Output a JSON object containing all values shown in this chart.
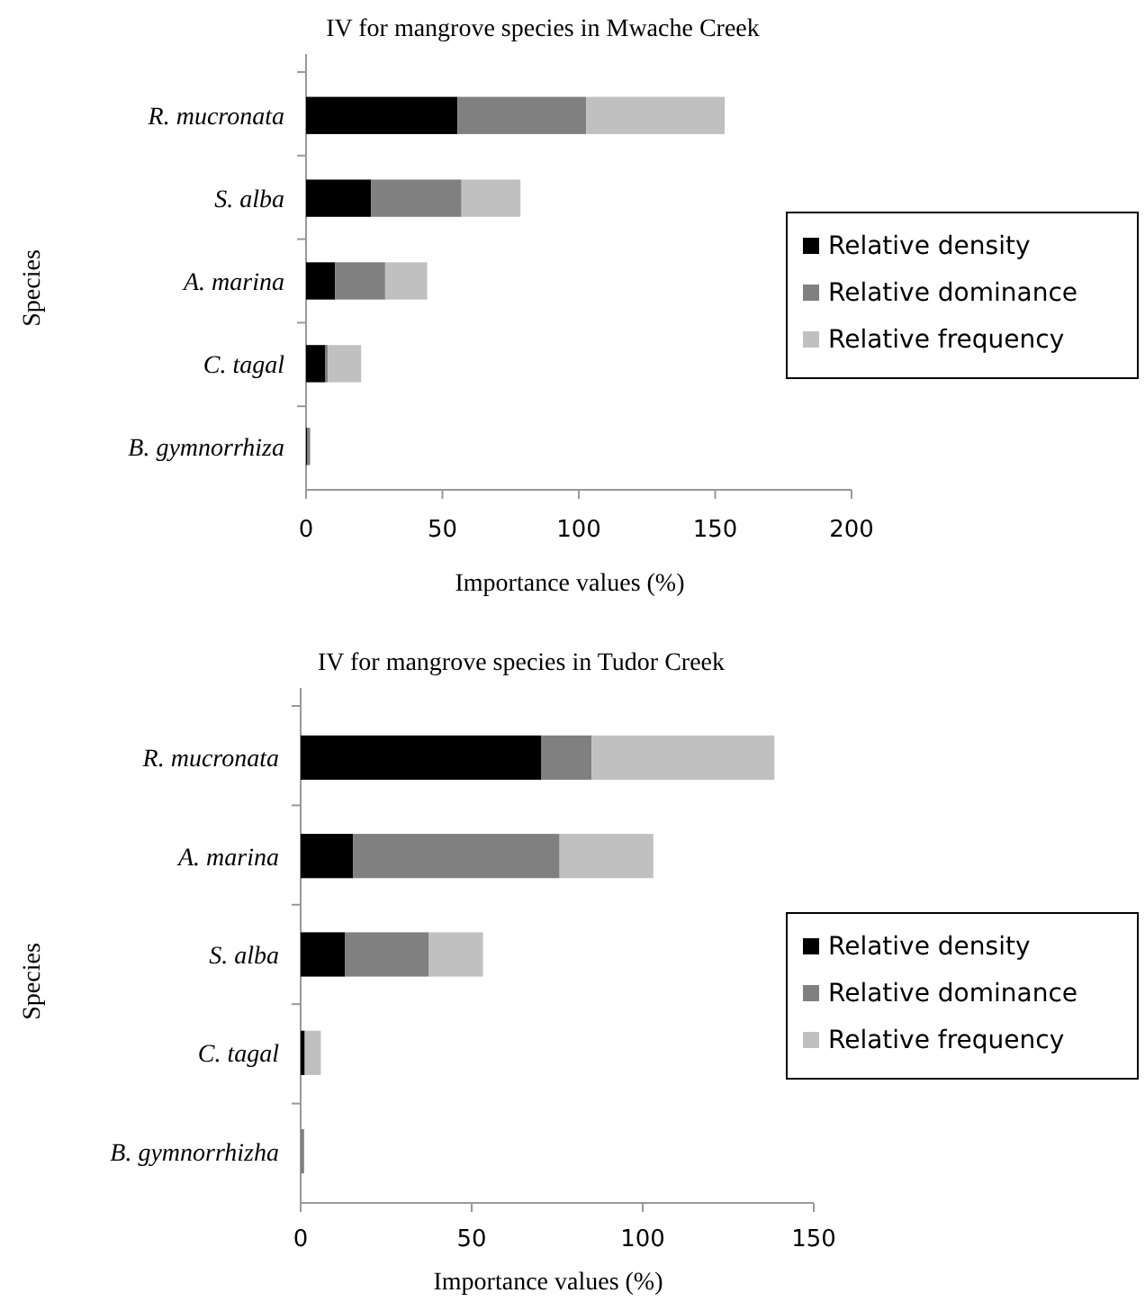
{
  "chart_data": [
    {
      "type": "bar",
      "orientation": "horizontal",
      "stacked": true,
      "title": "IV for mangrove species in Mwache Creek",
      "xlabel": "Importance values (%)",
      "ylabel": "Species",
      "categories": [
        "R. mucronata",
        "S. alba",
        "A. marina",
        "C. tagal",
        "B. gymnorrhiza"
      ],
      "series": [
        {
          "name": "Relative density",
          "color": "#000000",
          "values": [
            55.5,
            23.8,
            10.7,
            7.1,
            0.5
          ]
        },
        {
          "name": "Relative dominance",
          "color": "#808080",
          "values": [
            47.2,
            33.2,
            18.3,
            0.9,
            1
          ]
        },
        {
          "name": "Relative frequency",
          "color": "#c0c0c0",
          "values": [
            50.8,
            21.6,
            15.4,
            12.2,
            null
          ]
        }
      ],
      "xlim": [
        0,
        200
      ],
      "xticks": [
        0,
        50,
        100,
        150,
        200
      ],
      "legend": "right"
    },
    {
      "type": "bar",
      "orientation": "horizontal",
      "stacked": true,
      "title": "IV for mangrove species in Tudor Creek",
      "xlabel": "Importance values (%)",
      "ylabel": "Species",
      "categories": [
        "R. mucronata",
        "A. marina",
        "S. alba",
        "C. tagal",
        "B. gymnorrhizha"
      ],
      "series": [
        {
          "name": "Relative density",
          "color": "#000000",
          "values": [
            70.4,
            15.3,
            12.9,
            1.2,
            0
          ]
        },
        {
          "name": "Relative dominance",
          "color": "#808080",
          "values": [
            14.7,
            60.4,
            24.6,
            0,
            1
          ]
        },
        {
          "name": "Relative frequency",
          "color": "#c0c0c0",
          "values": [
            53.4,
            27.4,
            15.8,
            4.7,
            0
          ]
        }
      ],
      "xlim": [
        0,
        150
      ],
      "xticks": [
        0,
        50,
        100,
        150
      ],
      "legend": "right"
    }
  ]
}
